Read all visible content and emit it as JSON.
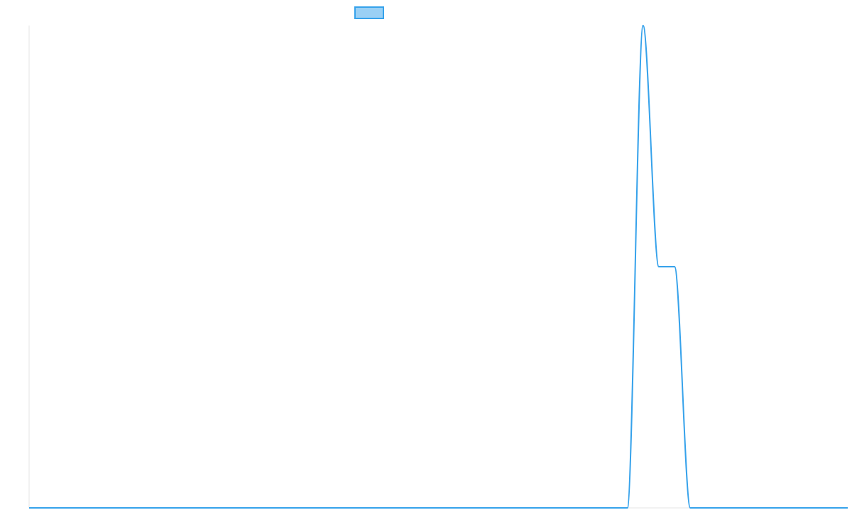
{
  "chart_data": {
    "type": "line",
    "title": "",
    "xlabel": "",
    "ylabel": "",
    "legend_position": "top-center",
    "grid": false,
    "xlim": [
      0,
      52
    ],
    "ylim": [
      0,
      2
    ],
    "x": [
      0,
      1,
      2,
      3,
      4,
      5,
      6,
      7,
      8,
      9,
      10,
      11,
      12,
      13,
      14,
      15,
      16,
      17,
      18,
      19,
      20,
      21,
      22,
      23,
      24,
      25,
      26,
      27,
      28,
      29,
      30,
      31,
      32,
      33,
      34,
      35,
      36,
      37,
      38,
      39,
      40,
      41,
      42,
      43,
      44,
      45,
      46,
      47,
      48,
      49,
      50,
      51,
      52
    ],
    "series": [
      {
        "color": "#36a2eb",
        "fill": "#9ad0f5",
        "values": [
          0,
          0,
          0,
          0,
          0,
          0,
          0,
          0,
          0,
          0,
          0,
          0,
          0,
          0,
          0,
          0,
          0,
          0,
          0,
          0,
          0,
          0,
          0,
          0,
          0,
          0,
          0,
          0,
          0,
          0,
          0,
          0,
          0,
          0,
          0,
          0,
          0,
          0,
          0,
          2,
          1,
          1,
          0,
          0,
          0,
          0,
          0,
          0,
          0,
          0,
          0,
          0,
          0
        ]
      }
    ]
  }
}
